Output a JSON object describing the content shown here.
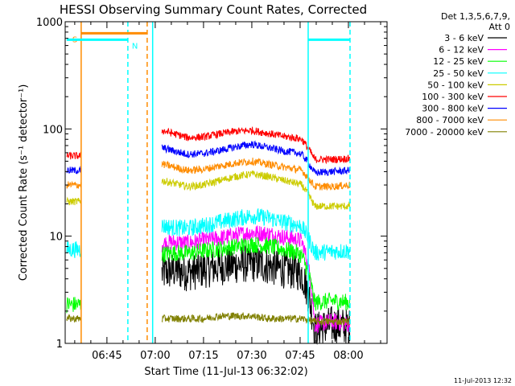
{
  "chart_data": {
    "type": "line",
    "title": "HESSI Observing Summary Count Rates, Corrected",
    "xlabel": "Start Time (11-Jul-13 06:32:02)",
    "ylabel": "Corrected Count Rate (s⁻¹ detector⁻¹)",
    "yscale": "log",
    "ylim": [
      1,
      1000
    ],
    "xlim": [
      "06:32:02",
      "08:12:00"
    ],
    "x_tick_labels": [
      "06:45",
      "07:00",
      "07:15",
      "07:30",
      "07:45",
      "08:00"
    ],
    "x_ticks_minutes": [
      45,
      60,
      75,
      90,
      105,
      120
    ],
    "y_tick_labels": [
      "1",
      "10",
      "100",
      "1000"
    ],
    "y_ticks": [
      1,
      10,
      100,
      1000
    ],
    "grid": false,
    "legend_placement": "right",
    "legend_header": [
      "Det 1,3,5,6,7,9,",
      "Att 0"
    ],
    "series": [
      {
        "name": "3 - 6 keV",
        "color": "#000000",
        "x": [
          32.5,
          37.0,
          59.2,
          62,
          66,
          70,
          75,
          80,
          85,
          90,
          95,
          100,
          104,
          105.5,
          109.5,
          115,
          120.5
        ],
        "y": [
          null,
          null,
          null,
          4.5,
          4.8,
          4.6,
          4.9,
          5.2,
          5.4,
          5.6,
          5.3,
          4.9,
          4.7,
          4.5,
          1.3,
          1.5,
          1.4
        ]
      },
      {
        "name": "6 - 12 keV",
        "color": "#ff00ff",
        "x": [
          32.5,
          37.0,
          59.2,
          62,
          66,
          70,
          75,
          80,
          85,
          90,
          95,
          100,
          104,
          105.5,
          109.5,
          115,
          120.5
        ],
        "y": [
          null,
          null,
          null,
          8.5,
          8.8,
          8.6,
          9.1,
          9.6,
          10.2,
          10.8,
          10.5,
          9.8,
          9.3,
          8.9,
          1.5,
          1.6,
          1.5
        ]
      },
      {
        "name": "12 - 25 keV",
        "color": "#00ff00",
        "x": [
          32.5,
          37.0,
          59.2,
          62,
          66,
          70,
          75,
          80,
          85,
          90,
          95,
          100,
          104,
          105.5,
          109.5,
          115,
          120.5
        ],
        "y": [
          2.3,
          2.3,
          null,
          6.8,
          7.0,
          6.9,
          7.3,
          7.6,
          8.0,
          8.4,
          8.1,
          7.5,
          7.0,
          6.6,
          2.4,
          2.5,
          2.4
        ]
      },
      {
        "name": "25 - 50 keV",
        "color": "#00ffff",
        "x": [
          32.5,
          37.0,
          59.2,
          62,
          66,
          70,
          75,
          80,
          85,
          90,
          95,
          100,
          104,
          105.5,
          109.5,
          115,
          120.5
        ],
        "y": [
          7.5,
          7.5,
          null,
          12.5,
          12.0,
          11.8,
          12.5,
          13.5,
          14.5,
          15.5,
          14.8,
          13.5,
          12.8,
          12.2,
          7.0,
          7.2,
          7.3
        ]
      },
      {
        "name": "50 - 100 keV",
        "color": "#cccc00",
        "x": [
          32.5,
          37.0,
          59.2,
          62,
          66,
          70,
          75,
          80,
          85,
          90,
          95,
          100,
          104,
          105.5,
          109.5,
          115,
          120.5
        ],
        "y": [
          21,
          21,
          null,
          33,
          31,
          29,
          30,
          33,
          36,
          38,
          36,
          33,
          31,
          30,
          19,
          19,
          19
        ]
      },
      {
        "name": "100 - 300 keV",
        "color": "#ff0000",
        "x": [
          32.5,
          37.0,
          59.2,
          62,
          66,
          70,
          75,
          80,
          85,
          90,
          95,
          100,
          104,
          105.5,
          109.5,
          115,
          120.5
        ],
        "y": [
          56,
          56,
          null,
          97,
          90,
          83,
          84,
          90,
          95,
          97,
          91,
          85,
          82,
          80,
          52,
          52,
          53
        ]
      },
      {
        "name": "300 - 800 keV",
        "color": "#0000ff",
        "x": [
          32.5,
          37.0,
          59.2,
          62,
          66,
          70,
          75,
          80,
          85,
          90,
          95,
          100,
          104,
          105.5,
          109.5,
          115,
          120.5
        ],
        "y": [
          41,
          41,
          null,
          67,
          62,
          58,
          59,
          63,
          68,
          72,
          67,
          62,
          60,
          58,
          39,
          40,
          41
        ]
      },
      {
        "name": "800 - 7000 keV",
        "color": "#ff8c00",
        "x": [
          32.5,
          37.0,
          59.2,
          62,
          66,
          70,
          75,
          80,
          85,
          90,
          95,
          100,
          104,
          105.5,
          109.5,
          115,
          120.5
        ],
        "y": [
          30,
          30,
          null,
          47,
          44,
          41,
          42,
          45,
          48,
          50,
          47,
          44,
          42,
          41,
          29,
          29,
          30
        ]
      },
      {
        "name": "7000 - 20000 keV",
        "color": "#808000",
        "x": [
          32.5,
          37.0,
          59.2,
          62,
          66,
          70,
          75,
          80,
          85,
          90,
          95,
          100,
          104,
          105.5,
          109.5,
          115,
          120.5
        ],
        "y": [
          1.7,
          1.7,
          null,
          1.7,
          1.7,
          1.7,
          1.7,
          1.8,
          1.8,
          1.8,
          1.7,
          1.7,
          1.7,
          1.7,
          1.6,
          1.6,
          1.6
        ]
      }
    ],
    "annotations": [
      {
        "label": "S",
        "color": "#ff8c00",
        "x_start": 37.0,
        "x_end": 57.5,
        "level": 780
      },
      {
        "label": "N",
        "color": "#00ffff",
        "x_start": 32.5,
        "x_end": 51.5,
        "level": 680
      },
      {
        "label": "",
        "color": "#00ffff",
        "x_start": 107.5,
        "x_end": 120.5,
        "level": 680
      }
    ],
    "vertical_lines": [
      {
        "x": 37.0,
        "color": "#ff8c00",
        "style": "solid"
      },
      {
        "x": 57.5,
        "color": "#ff8c00",
        "style": "dashed"
      },
      {
        "x": 51.5,
        "color": "#00ffff",
        "style": "dashed"
      },
      {
        "x": 59.2,
        "color": "#00ffff",
        "style": "solid"
      },
      {
        "x": 107.5,
        "color": "#00ffff",
        "style": "solid"
      },
      {
        "x": 120.5,
        "color": "#00ffff",
        "style": "dashed"
      }
    ]
  },
  "footer": {
    "timestamp": "11-Jul-2013 12:32"
  }
}
